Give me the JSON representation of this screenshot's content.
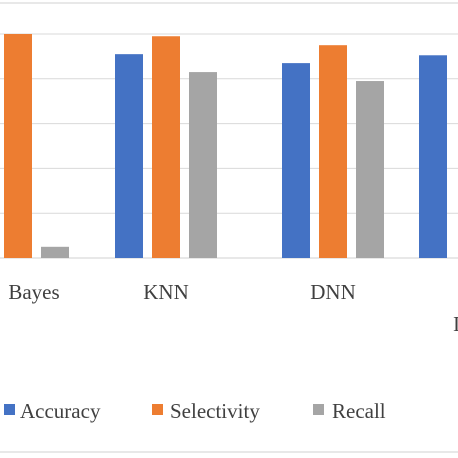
{
  "chart_data": {
    "type": "bar",
    "categories": [
      "Bayes",
      "KNN",
      "DNN",
      "I"
    ],
    "series": [
      {
        "name": "Accuracy",
        "color": "#4472c4",
        "values": [
          null,
          0.91,
          0.87,
          0.905
        ]
      },
      {
        "name": "Selectivity",
        "color": "#ed7d31",
        "values": [
          1.0,
          0.99,
          0.95,
          null
        ]
      },
      {
        "name": "Recall",
        "color": "#a5a5a5",
        "values": [
          0.05,
          0.83,
          0.79,
          null
        ]
      }
    ],
    "ylim": [
      0,
      1.0
    ],
    "gridlines": [
      0.2,
      0.4,
      0.6,
      0.8,
      1.0
    ],
    "grid": true,
    "legend": "bottom"
  }
}
